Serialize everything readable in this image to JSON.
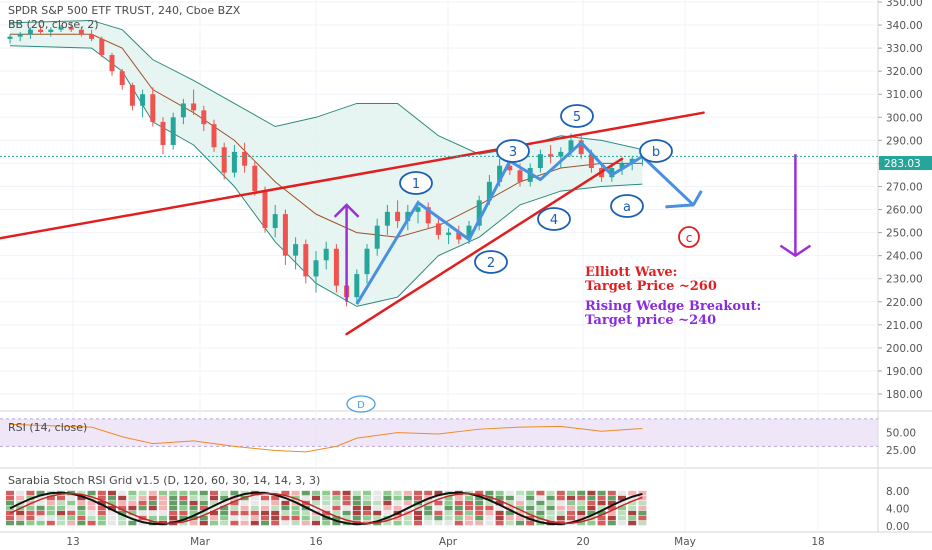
{
  "header": {
    "title": "SPDR S&P 500 ETF TRUST, 240, Cboe BZX",
    "indicator": "BB (20, close, 2)"
  },
  "price_axis": {
    "ticks": [
      "350.00",
      "340.00",
      "330.00",
      "320.00",
      "310.00",
      "300.00",
      "290.00",
      "280.00",
      "270.00",
      "260.00",
      "250.00",
      "240.00",
      "230.00",
      "220.00",
      "210.00",
      "200.00",
      "190.00",
      "180.00"
    ],
    "last_price": "283.03",
    "last_price_color": "#26a69a"
  },
  "rsi_panel": {
    "label": "RSI (14, close)",
    "ticks": [
      "50.00",
      "25.00"
    ],
    "band_color": "#e8ddf5"
  },
  "stoch_panel": {
    "label": "Sarabia Stoch RSI Grid v1.5 (D, 120, 60, 30, 14, 14, 3, 3)",
    "ticks": [
      "8.00",
      "4.00",
      "0.00"
    ]
  },
  "date_axis": {
    "labels": [
      "13",
      "Mar",
      "16",
      "Apr",
      "20",
      "May",
      "18"
    ]
  },
  "waves": {
    "impulse": [
      "1",
      "2",
      "3",
      "4",
      "5"
    ],
    "corrective": [
      "a",
      "b",
      "c"
    ],
    "marker_d": "D"
  },
  "annotations": {
    "elliott_title": "Elliott Wave:",
    "elliott_target": "Target Price ~260",
    "wedge_title": "Rising Wedge Breakout:",
    "wedge_target": "Target price ~240",
    "elliott_color": "#e02020",
    "wedge_color": "#8a2be2"
  },
  "colors": {
    "up": "#26a69a",
    "down": "#ef5350",
    "wave_path": "#4a90e2",
    "wedge": "#e02020",
    "arrow": "#9b30d9",
    "band_fill": "#e0f2ee",
    "band_line": "#2e8b7a",
    "basis": "#a0522d"
  },
  "chart_data": {
    "type": "candlestick",
    "price_range": [
      180,
      350
    ],
    "candles": [
      {
        "x": 0,
        "o": 334,
        "h": 336,
        "l": 332,
        "c": 335
      },
      {
        "x": 1,
        "o": 335,
        "h": 337,
        "l": 333,
        "c": 336
      },
      {
        "x": 2,
        "o": 336,
        "h": 339,
        "l": 334,
        "c": 338
      },
      {
        "x": 3,
        "o": 338,
        "h": 340,
        "l": 336,
        "c": 337
      },
      {
        "x": 4,
        "o": 337,
        "h": 339,
        "l": 335,
        "c": 338
      },
      {
        "x": 5,
        "o": 338,
        "h": 340,
        "l": 337,
        "c": 339
      },
      {
        "x": 6,
        "o": 339,
        "h": 341,
        "l": 337,
        "c": 338
      },
      {
        "x": 7,
        "o": 338,
        "h": 339,
        "l": 335,
        "c": 336
      },
      {
        "x": 8,
        "o": 336,
        "h": 338,
        "l": 333,
        "c": 334
      },
      {
        "x": 9,
        "o": 334,
        "h": 335,
        "l": 326,
        "c": 327
      },
      {
        "x": 10,
        "o": 327,
        "h": 328,
        "l": 318,
        "c": 320
      },
      {
        "x": 11,
        "o": 320,
        "h": 321,
        "l": 312,
        "c": 314
      },
      {
        "x": 12,
        "o": 314,
        "h": 315,
        "l": 303,
        "c": 305
      },
      {
        "x": 13,
        "o": 305,
        "h": 312,
        "l": 300,
        "c": 310
      },
      {
        "x": 14,
        "o": 310,
        "h": 313,
        "l": 296,
        "c": 298
      },
      {
        "x": 15,
        "o": 298,
        "h": 300,
        "l": 284,
        "c": 288
      },
      {
        "x": 16,
        "o": 288,
        "h": 302,
        "l": 286,
        "c": 300
      },
      {
        "x": 17,
        "o": 300,
        "h": 308,
        "l": 297,
        "c": 306
      },
      {
        "x": 18,
        "o": 306,
        "h": 312,
        "l": 301,
        "c": 303
      },
      {
        "x": 19,
        "o": 303,
        "h": 305,
        "l": 294,
        "c": 297
      },
      {
        "x": 20,
        "o": 297,
        "h": 299,
        "l": 285,
        "c": 287
      },
      {
        "x": 21,
        "o": 287,
        "h": 289,
        "l": 273,
        "c": 276
      },
      {
        "x": 22,
        "o": 276,
        "h": 288,
        "l": 274,
        "c": 285
      },
      {
        "x": 23,
        "o": 285,
        "h": 289,
        "l": 276,
        "c": 279
      },
      {
        "x": 24,
        "o": 279,
        "h": 281,
        "l": 266,
        "c": 268
      },
      {
        "x": 25,
        "o": 268,
        "h": 270,
        "l": 250,
        "c": 252
      },
      {
        "x": 26,
        "o": 252,
        "h": 262,
        "l": 248,
        "c": 258
      },
      {
        "x": 27,
        "o": 258,
        "h": 260,
        "l": 236,
        "c": 240
      },
      {
        "x": 28,
        "o": 240,
        "h": 248,
        "l": 234,
        "c": 245
      },
      {
        "x": 29,
        "o": 245,
        "h": 247,
        "l": 228,
        "c": 231
      },
      {
        "x": 30,
        "o": 231,
        "h": 242,
        "l": 224,
        "c": 238
      },
      {
        "x": 31,
        "o": 238,
        "h": 246,
        "l": 234,
        "c": 243
      },
      {
        "x": 32,
        "o": 243,
        "h": 245,
        "l": 224,
        "c": 227
      },
      {
        "x": 33,
        "o": 227,
        "h": 230,
        "l": 218,
        "c": 222
      },
      {
        "x": 34,
        "o": 222,
        "h": 234,
        "l": 219,
        "c": 232
      },
      {
        "x": 35,
        "o": 232,
        "h": 245,
        "l": 228,
        "c": 243
      },
      {
        "x": 36,
        "o": 243,
        "h": 256,
        "l": 240,
        "c": 253
      },
      {
        "x": 37,
        "o": 253,
        "h": 262,
        "l": 249,
        "c": 259
      },
      {
        "x": 38,
        "o": 259,
        "h": 264,
        "l": 252,
        "c": 255
      },
      {
        "x": 39,
        "o": 255,
        "h": 262,
        "l": 251,
        "c": 259
      },
      {
        "x": 40,
        "o": 259,
        "h": 264,
        "l": 254,
        "c": 261
      },
      {
        "x": 41,
        "o": 261,
        "h": 263,
        "l": 252,
        "c": 254
      },
      {
        "x": 42,
        "o": 254,
        "h": 256,
        "l": 247,
        "c": 249
      },
      {
        "x": 43,
        "o": 249,
        "h": 252,
        "l": 245,
        "c": 250
      },
      {
        "x": 44,
        "o": 250,
        "h": 253,
        "l": 245,
        "c": 247
      },
      {
        "x": 45,
        "o": 247,
        "h": 255,
        "l": 245,
        "c": 253
      },
      {
        "x": 46,
        "o": 253,
        "h": 266,
        "l": 251,
        "c": 264
      },
      {
        "x": 47,
        "o": 264,
        "h": 275,
        "l": 262,
        "c": 272
      },
      {
        "x": 48,
        "o": 272,
        "h": 282,
        "l": 270,
        "c": 279
      },
      {
        "x": 49,
        "o": 279,
        "h": 284,
        "l": 275,
        "c": 277
      },
      {
        "x": 50,
        "o": 277,
        "h": 280,
        "l": 270,
        "c": 272
      },
      {
        "x": 51,
        "o": 272,
        "h": 280,
        "l": 270,
        "c": 278
      },
      {
        "x": 52,
        "o": 278,
        "h": 286,
        "l": 276,
        "c": 284
      },
      {
        "x": 53,
        "o": 284,
        "h": 288,
        "l": 280,
        "c": 283
      },
      {
        "x": 54,
        "o": 283,
        "h": 287,
        "l": 278,
        "c": 285
      },
      {
        "x": 55,
        "o": 285,
        "h": 293,
        "l": 283,
        "c": 290
      },
      {
        "x": 56,
        "o": 290,
        "h": 292,
        "l": 282,
        "c": 284
      },
      {
        "x": 57,
        "o": 284,
        "h": 286,
        "l": 276,
        "c": 278
      },
      {
        "x": 58,
        "o": 278,
        "h": 280,
        "l": 272,
        "c": 274
      },
      {
        "x": 59,
        "o": 274,
        "h": 280,
        "l": 272,
        "c": 278
      },
      {
        "x": 60,
        "o": 278,
        "h": 282,
        "l": 275,
        "c": 280
      },
      {
        "x": 61,
        "o": 280,
        "h": 283,
        "l": 277,
        "c": 282
      },
      {
        "x": 62,
        "o": 282,
        "h": 284,
        "l": 279,
        "c": 283
      }
    ],
    "bb_upper": [
      [
        0,
        341
      ],
      [
        8,
        342
      ],
      [
        11,
        338
      ],
      [
        14,
        325
      ],
      [
        18,
        316
      ],
      [
        22,
        306
      ],
      [
        26,
        296
      ],
      [
        30,
        300
      ],
      [
        34,
        306
      ],
      [
        38,
        306
      ],
      [
        42,
        292
      ],
      [
        46,
        284
      ],
      [
        50,
        287
      ],
      [
        54,
        292
      ],
      [
        58,
        290
      ],
      [
        62,
        286
      ]
    ],
    "bb_lower": [
      [
        0,
        331
      ],
      [
        8,
        330
      ],
      [
        11,
        320
      ],
      [
        14,
        298
      ],
      [
        18,
        288
      ],
      [
        22,
        270
      ],
      [
        26,
        246
      ],
      [
        30,
        228
      ],
      [
        34,
        218
      ],
      [
        38,
        222
      ],
      [
        42,
        240
      ],
      [
        46,
        248
      ],
      [
        50,
        262
      ],
      [
        54,
        268
      ],
      [
        58,
        270
      ],
      [
        62,
        271
      ]
    ],
    "bb_basis": [
      [
        0,
        336
      ],
      [
        8,
        336
      ],
      [
        11,
        330
      ],
      [
        14,
        312
      ],
      [
        18,
        302
      ],
      [
        22,
        290
      ],
      [
        26,
        272
      ],
      [
        30,
        258
      ],
      [
        34,
        250
      ],
      [
        38,
        248
      ],
      [
        42,
        253
      ],
      [
        46,
        262
      ],
      [
        50,
        272
      ],
      [
        54,
        278
      ],
      [
        58,
        280
      ],
      [
        62,
        280
      ]
    ],
    "wave_path": [
      [
        34,
        219
      ],
      [
        40,
        263
      ],
      [
        45,
        247
      ],
      [
        49,
        281
      ],
      [
        52,
        273
      ],
      [
        56,
        289
      ],
      [
        59,
        275
      ],
      [
        62,
        283
      ],
      [
        67,
        262
      ]
    ],
    "wedge_upper": [
      [
        -8,
        242
      ],
      [
        68,
        302
      ]
    ],
    "wedge_lower": [
      [
        33,
        206
      ],
      [
        60,
        282
      ]
    ],
    "breakout_arrow": {
      "x": 33,
      "from": 220,
      "to": 262
    },
    "target_arrow": {
      "x": 77,
      "from": 284,
      "to": 240
    },
    "rsi": [
      [
        0,
        62
      ],
      [
        4,
        60
      ],
      [
        8,
        58
      ],
      [
        11,
        44
      ],
      [
        14,
        34
      ],
      [
        18,
        38
      ],
      [
        22,
        30
      ],
      [
        26,
        24
      ],
      [
        29,
        22
      ],
      [
        32,
        30
      ],
      [
        34,
        42
      ],
      [
        38,
        50
      ],
      [
        42,
        48
      ],
      [
        46,
        55
      ],
      [
        50,
        58
      ],
      [
        54,
        59
      ],
      [
        58,
        52
      ],
      [
        62,
        56
      ]
    ]
  }
}
